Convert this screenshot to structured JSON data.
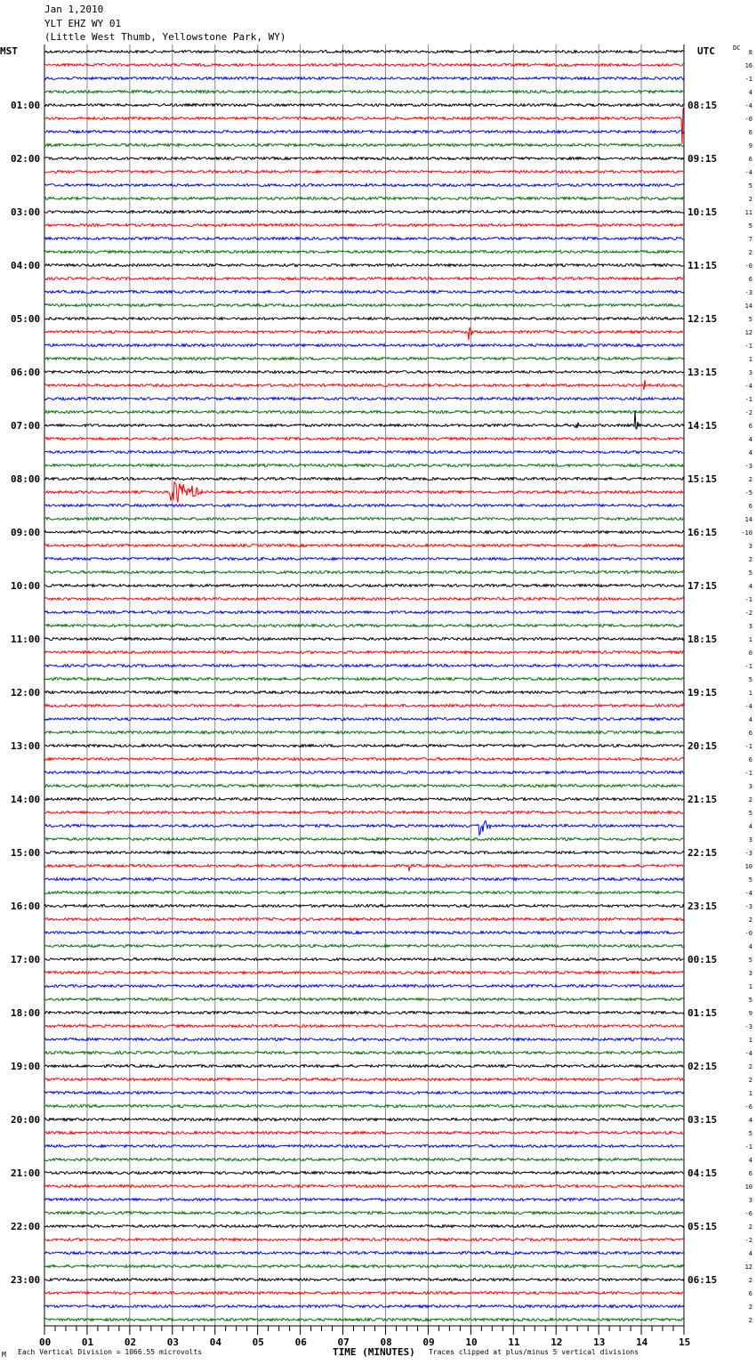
{
  "header": {
    "date": "Jan 1,2010",
    "station": "YLT EHZ WY 01",
    "location": "(Little West Thumb, Yellowstone Park, WY)"
  },
  "left_axis_title": "MST",
  "right_axis_title": "UTC",
  "dc_title": "DC",
  "footer": {
    "corner_mark": "M",
    "scale_note": "Each Vertical Division = 1066.55 microvolts",
    "xlabel": "TIME (MINUTES)",
    "clip_note": "Traces clipped at plus/minus 5 vertical divisions"
  },
  "chart_data": {
    "type": "line",
    "title": "YLT EHZ WY 01 helicorder, Jan 1,2010",
    "xlabel": "TIME (MINUTES)",
    "xlim": [
      0,
      15
    ],
    "x_ticks": [
      "00",
      "01",
      "02",
      "03",
      "04",
      "05",
      "06",
      "07",
      "08",
      "09",
      "10",
      "11",
      "12",
      "13",
      "14",
      "15"
    ],
    "rows_per_hour": 4,
    "row_count": 96,
    "trace_colors": [
      "#000000",
      "#ff0000",
      "#0000ff",
      "#007000"
    ],
    "mst_labels": [
      "01:00",
      "02:00",
      "03:00",
      "04:00",
      "05:00",
      "06:00",
      "07:00",
      "08:00",
      "09:00",
      "10:00",
      "11:00",
      "12:00",
      "13:00",
      "14:00",
      "15:00",
      "16:00",
      "17:00",
      "18:00",
      "19:00",
      "20:00",
      "21:00",
      "22:00",
      "23:00"
    ],
    "utc_labels": [
      "08:15",
      "09:15",
      "10:15",
      "11:15",
      "12:15",
      "13:15",
      "14:15",
      "15:15",
      "16:15",
      "17:15",
      "18:15",
      "19:15",
      "20:15",
      "21:15",
      "22:15",
      "23:15",
      "00:15",
      "01:15",
      "02:15",
      "03:15",
      "04:15",
      "05:15",
      "06:15"
    ],
    "dc_offsets": [
      "8",
      "16",
      "-1",
      "4",
      "-4",
      "-0",
      "6",
      "9",
      "6",
      "-4",
      "5",
      "2",
      "11",
      "5",
      "7",
      "2",
      "-0",
      "6",
      "-3",
      "14",
      "5",
      "12",
      "-1",
      "1",
      "3",
      "-4",
      "-1",
      "-2",
      "6",
      "4",
      "4",
      "-3",
      "2",
      "-5",
      "6",
      "14",
      "-10",
      "3",
      "2",
      "5",
      "4",
      "-1",
      "-2",
      "3",
      "1",
      "0",
      "-1",
      "5",
      "1",
      "-4",
      "4",
      "6",
      "-1",
      "6",
      "-1",
      "3",
      "2",
      "5",
      "4",
      "3",
      "-3",
      "10",
      "5",
      "-4",
      "-3",
      "2",
      "-0",
      "4",
      "5",
      "3",
      "1",
      "5",
      "9",
      "-3",
      "1",
      "-4",
      "2",
      "2",
      "1",
      "-6",
      "4",
      "5",
      "-1",
      "4",
      "6",
      "10",
      "3",
      "-6",
      "2",
      "-2",
      "4",
      "12",
      "2",
      "6",
      "2",
      "2"
    ],
    "events": [
      {
        "row": 5,
        "minute": 14.95,
        "amplitude": 3,
        "note": "spike"
      },
      {
        "row": 21,
        "minute": 9.95,
        "amplitude": 2
      },
      {
        "row": 25,
        "minute": 14.05,
        "amplitude": 0.6
      },
      {
        "row": 28,
        "minute": 12.45,
        "amplitude": 1.2
      },
      {
        "row": 28,
        "minute": 13.85,
        "amplitude": 1.6
      },
      {
        "row": 33,
        "minute": 2.9,
        "amplitude": 1.0,
        "duration": 1.0,
        "note": "earthquake"
      },
      {
        "row": 58,
        "minute": 10.2,
        "amplitude": 0.8,
        "duration": 0.3
      },
      {
        "row": 61,
        "minute": 8.55,
        "amplitude": 0.4
      },
      {
        "row": 66,
        "minute": 13.5,
        "amplitude": 0.4
      }
    ]
  }
}
